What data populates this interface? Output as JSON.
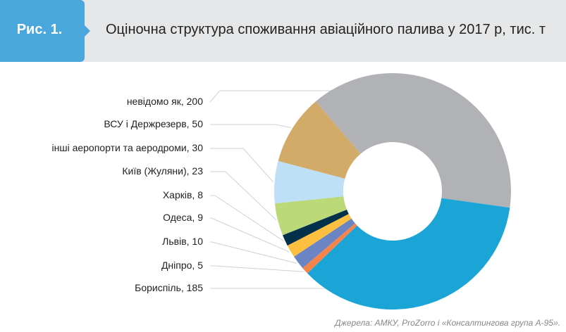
{
  "header": {
    "figure_label": "Рис. 1.",
    "title": "Оціночна структура споживання авіаційного палива у 2017 р, тис. т"
  },
  "chart_data": {
    "type": "pie",
    "donut": true,
    "title": "Оціночна структура споживання авіаційного палива у 2017 р, тис. т",
    "slices": [
      {
        "label": "невідомо як, 200",
        "name": "невідомо як",
        "value": 200,
        "color": "#b1b2b6"
      },
      {
        "label": "Бориспіль, 185",
        "name": "Бориспіль",
        "value": 185,
        "color": "#1ba5d6"
      },
      {
        "label": "Дніпро, 5",
        "name": "Дніпро",
        "value": 5,
        "color": "#f4844a"
      },
      {
        "label": "Львів, 10",
        "name": "Львів",
        "value": 10,
        "color": "#6b84c3"
      },
      {
        "label": "Одеса, 9",
        "name": "Одеса",
        "value": 9,
        "color": "#fcbf3f"
      },
      {
        "label": "Харків, 8",
        "name": "Харків",
        "value": 8,
        "color": "#03304a"
      },
      {
        "label": "Київ (Жуляни), 23",
        "name": "Київ (Жуляни)",
        "value": 23,
        "color": "#bcd97a"
      },
      {
        "label": "інші аеропорти та аеродроми, 30",
        "name": "інші аеропорти та аеродроми",
        "value": 30,
        "color": "#bde0f6"
      },
      {
        "label": "ВСУ і Держрезерв, 50",
        "name": "ВСУ і Держрезерв",
        "value": 50,
        "color": "#d3ab69"
      }
    ],
    "legend_order": [
      0,
      8,
      7,
      6,
      5,
      4,
      3,
      2,
      1
    ]
  },
  "source": "Джерела: АМКУ, ProZorro і «Консалтингова група А-95»."
}
